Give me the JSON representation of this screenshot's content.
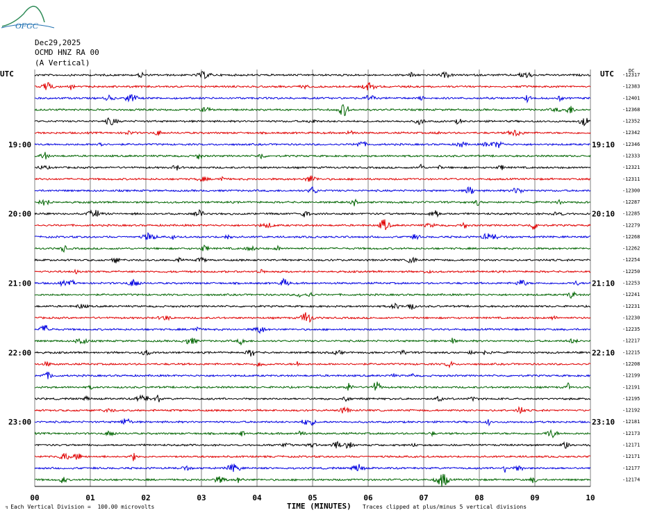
{
  "logo_text": "OFGC",
  "header": {
    "date": "Dec29,2025",
    "station": "OCMD HNZ RA 00",
    "component": "(A Vertical)"
  },
  "left_axis_title": "UTC",
  "right_axis_title": "UTC",
  "dc_label": "DC",
  "footer": {
    "scale_note": "Each Vertical Division =  100.00 microvolts",
    "clip_note": "Traces clipped at plus/minus 5 vertical divisions"
  },
  "colors": {
    "trace_cycle": [
      "#000000",
      "#e00000",
      "#0000e0",
      "#006400"
    ],
    "grid": "#808080"
  },
  "chart_data": {
    "type": "line",
    "title": "",
    "xlabel": "TIME (MINUTES)",
    "ylabel": "",
    "xlim": [
      0,
      10
    ],
    "x_ticks": [
      "00",
      "01",
      "02",
      "03",
      "04",
      "05",
      "06",
      "07",
      "08",
      "09",
      "10"
    ],
    "grid": true,
    "traces_per_hour": 6,
    "left_hour_labels": [
      "19:00",
      "20:00",
      "21:00",
      "22:00",
      "23:00"
    ],
    "right_hour_labels": [
      "19:10",
      "20:10",
      "21:10",
      "22:10",
      "23:10"
    ],
    "left_label_trace_index": [
      6,
      12,
      18,
      24,
      30
    ],
    "trace_dc_offsets": [
      -12317,
      -12383,
      -12401,
      -12368,
      -12352,
      -12342,
      -12346,
      -12333,
      -12321,
      -12311,
      -12300,
      -12287,
      -12285,
      -12279,
      -12268,
      -12262,
      -12254,
      -12250,
      -12253,
      -12241,
      -12231,
      -12230,
      -12235,
      -12217,
      -12215,
      -12208,
      -12199,
      -12191,
      -12195,
      -12192,
      -12181,
      -12173,
      -12171,
      -12171,
      -12177,
      -12174
    ],
    "trace_colors": [
      "black",
      "red",
      "blue",
      "green",
      "black",
      "red",
      "blue",
      "green",
      "black",
      "red",
      "blue",
      "green",
      "black",
      "red",
      "blue",
      "green",
      "black",
      "red",
      "blue",
      "green",
      "black",
      "red",
      "blue",
      "green",
      "black",
      "red",
      "blue",
      "green",
      "black",
      "red",
      "blue",
      "green",
      "black",
      "red",
      "blue",
      "green"
    ],
    "clip_divisions": 5,
    "microvolts_per_division": 100.0
  }
}
